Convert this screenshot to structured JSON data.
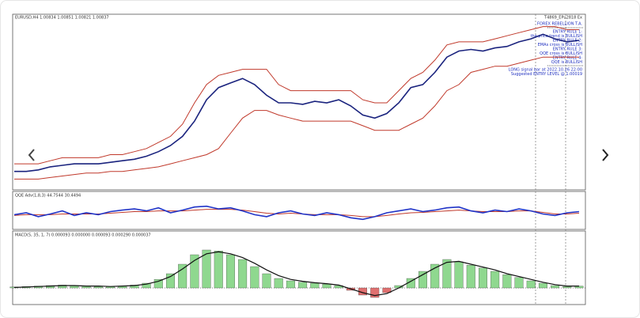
{
  "header": {
    "symbol": "EURUSD,H4 1.00834 1.00851 1.00821 1.00837",
    "account": "T4869_EPu2818 Ex"
  },
  "info_panel": {
    "title": "FOREX REBELLION T.A.",
    "lines": [
      "ENTRY RULE 1:",
      "the price trend is BULLISH",
      "ENTRY RULE 2:",
      "EMAs cross is BULLISH",
      "ENTRY RULE 3:",
      "QQE cross is BULLISH",
      "ENTRY RULE 4:",
      "QQE is BULLISH"
    ],
    "signal": [
      "LONG signal bar at 2022.10.26 22:00",
      "Suggested ENTRY LEVEL @ 1.00019"
    ]
  },
  "panels": [
    {
      "type": "line",
      "ylim": [
        -5,
        105
      ],
      "series": [
        {
          "color": "#c0392b",
          "values": [
            10,
            10,
            10,
            12,
            14,
            14,
            14,
            14,
            16,
            16,
            18,
            20,
            24,
            28,
            36,
            50,
            62,
            68,
            70,
            72,
            72,
            72,
            62,
            58,
            58,
            58,
            58,
            58,
            58,
            52,
            50,
            50,
            58,
            66,
            70,
            78,
            88,
            90,
            90,
            90,
            92,
            94,
            96,
            98,
            100,
            100,
            98,
            98
          ]
        },
        {
          "color": "#c0392b",
          "values": [
            0,
            0,
            0,
            1,
            2,
            3,
            4,
            4,
            5,
            5,
            6,
            7,
            8,
            10,
            12,
            14,
            16,
            20,
            30,
            40,
            45,
            45,
            42,
            40,
            38,
            38,
            38,
            38,
            38,
            35,
            32,
            32,
            32,
            36,
            40,
            48,
            58,
            62,
            70,
            72,
            74,
            74,
            76,
            78,
            80,
            80,
            80,
            80
          ]
        },
        {
          "color": "#1a237e",
          "values": [
            5,
            5,
            6,
            8,
            9,
            10,
            10,
            10,
            11,
            12,
            13,
            15,
            18,
            22,
            28,
            38,
            52,
            60,
            63,
            66,
            62,
            55,
            50,
            50,
            49,
            51,
            50,
            52,
            48,
            42,
            40,
            43,
            50,
            60,
            62,
            70,
            80,
            84,
            85,
            84,
            86,
            87,
            90,
            92,
            95,
            92,
            90,
            91
          ]
        }
      ]
    },
    {
      "type": "line",
      "title": "QQE Adv(1,8,3) 44.7544 30.4494",
      "ylim": [
        20,
        90
      ],
      "series": [
        {
          "color": "#c0392b",
          "values": [
            48,
            50,
            50,
            50,
            52,
            52,
            52,
            52,
            54,
            56,
            58,
            58,
            60,
            60,
            60,
            62,
            64,
            64,
            64,
            62,
            58,
            54,
            52,
            54,
            52,
            50,
            50,
            50,
            48,
            45,
            45,
            48,
            52,
            55,
            56,
            58,
            60,
            62,
            60,
            58,
            58,
            58,
            60,
            60,
            56,
            52,
            52,
            54
          ]
        },
        {
          "color": "#2034c8",
          "values": [
            50,
            55,
            45,
            52,
            60,
            48,
            55,
            50,
            58,
            62,
            65,
            60,
            68,
            55,
            62,
            70,
            72,
            65,
            68,
            60,
            50,
            45,
            55,
            60,
            52,
            48,
            55,
            50,
            42,
            38,
            45,
            55,
            60,
            65,
            58,
            62,
            68,
            70,
            60,
            55,
            62,
            58,
            65,
            60,
            52,
            48,
            55,
            58
          ]
        }
      ]
    },
    {
      "type": "histogram",
      "title": "MACD(5, 35, 1, 7) 0.000093 0.000000 0.000093 0.000290 0.000037",
      "ylim": [
        -30,
        100
      ],
      "positive_color": "#8fd88f",
      "negative_color": "#e07070",
      "values": [
        2,
        3,
        4,
        5,
        6,
        5,
        4,
        3,
        3,
        4,
        6,
        10,
        18,
        30,
        50,
        70,
        80,
        78,
        70,
        60,
        45,
        30,
        20,
        15,
        12,
        10,
        8,
        5,
        -5,
        -15,
        -20,
        -10,
        5,
        20,
        35,
        50,
        60,
        55,
        48,
        42,
        35,
        28,
        22,
        15,
        10,
        5,
        3,
        4
      ],
      "signal": {
        "color": "#111111",
        "values": [
          1,
          2,
          3,
          4,
          5,
          5,
          4,
          4,
          3,
          4,
          5,
          8,
          14,
          24,
          40,
          58,
          72,
          76,
          72,
          64,
          52,
          38,
          26,
          18,
          14,
          11,
          9,
          6,
          -2,
          -10,
          -16,
          -12,
          0,
          14,
          28,
          42,
          54,
          56,
          50,
          44,
          38,
          30,
          24,
          18,
          12,
          7,
          4,
          4
        ]
      }
    }
  ]
}
